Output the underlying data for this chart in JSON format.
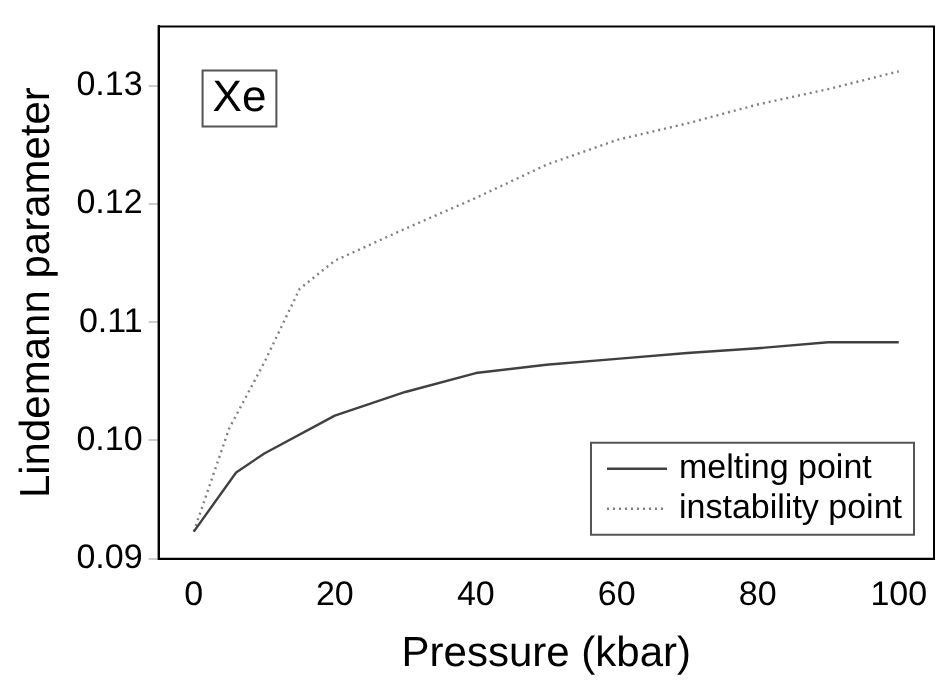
{
  "chart_data": {
    "type": "line",
    "xlabel": "Pressure (kbar)",
    "ylabel": "Lindemann parameter",
    "annotations": [
      "Xe"
    ],
    "xlim": [
      -5,
      105
    ],
    "xticks": [
      0,
      20,
      40,
      60,
      80,
      100
    ],
    "ylim": [
      0.09,
      0.135
    ],
    "yticks": [
      0.09,
      {
        "value": 0.1,
        "label": "0.10"
      },
      0.11,
      0.12,
      0.13
    ],
    "x": [
      0,
      6,
      10,
      20,
      30,
      40,
      50,
      60,
      70,
      80,
      90,
      100
    ],
    "series": [
      {
        "name": "melting point",
        "color": "#404040",
        "line_style": "solid",
        "values": [
          0.0923,
          0.0973,
          0.0989,
          0.1021,
          0.1041,
          0.1057,
          0.1064,
          0.1069,
          0.1074,
          0.1078,
          0.1083,
          0.1083
        ]
      },
      {
        "name": "instability point",
        "color": "#808080",
        "line_style": "dotted",
        "x": [
          0,
          5,
          10,
          15,
          20,
          30,
          40,
          50,
          60,
          70,
          80,
          90,
          100
        ],
        "values": [
          0.0923,
          0.101,
          0.1066,
          0.1128,
          0.1152,
          0.1179,
          0.1205,
          0.1233,
          0.1254,
          0.1268,
          0.1284,
          0.1297,
          0.1312
        ]
      }
    ],
    "legend": "bottom right",
    "grid": false,
    "marker": "none"
  }
}
